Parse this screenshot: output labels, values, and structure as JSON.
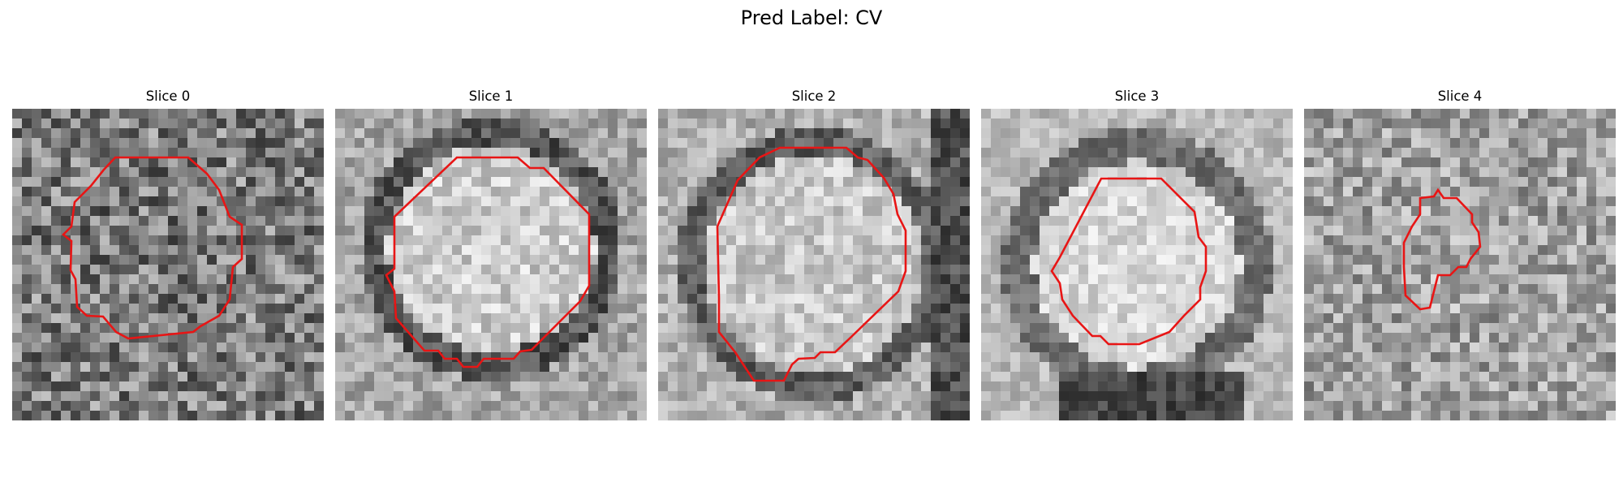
{
  "figure": {
    "title": "Pred Label: CV"
  },
  "panels": [
    {
      "title": "Slice 0"
    },
    {
      "title": "Slice 1"
    },
    {
      "title": "Slice 2"
    },
    {
      "title": "Slice 3"
    },
    {
      "title": "Slice 4"
    }
  ],
  "colors": {
    "contour": "#e81515",
    "background": "#ffffff"
  }
}
